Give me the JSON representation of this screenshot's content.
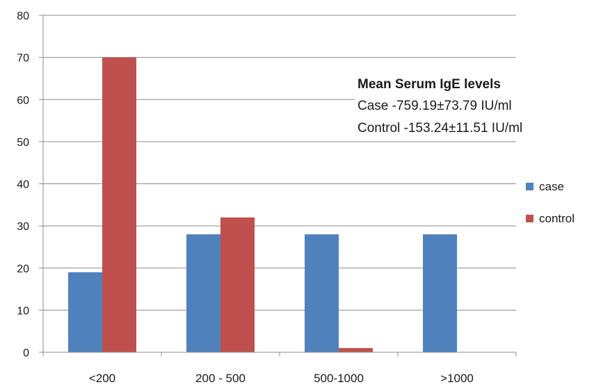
{
  "chart_data": {
    "type": "bar",
    "categories": [
      "<200",
      "200 - 500",
      "500-1000",
      ">1000"
    ],
    "series": [
      {
        "name": "case",
        "values": [
          19,
          28,
          28,
          28
        ],
        "color": "#4F81BD"
      },
      {
        "name": "control",
        "values": [
          70,
          32,
          1,
          0
        ],
        "color": "#C0504D"
      }
    ],
    "ylim": [
      0,
      80
    ],
    "yticks": [
      0,
      10,
      20,
      30,
      40,
      50,
      60,
      70,
      80
    ],
    "grid": true,
    "legend_position": "right",
    "title": "",
    "xlabel": "",
    "ylabel": ""
  },
  "annotation": {
    "title": "Mean Serum IgE levels",
    "line1": "Case -759.19±73.79  IU/ml",
    "line2": "Control -153.24±11.51  IU/ml"
  }
}
